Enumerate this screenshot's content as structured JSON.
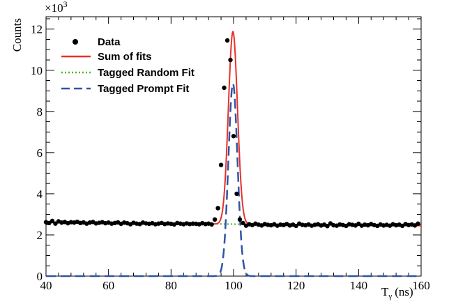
{
  "chart_data": {
    "type": "scatter",
    "xlabel": "T",
    "xlabel_sub": "γ",
    "xlabel_unit": "(ns)",
    "ylabel": "Counts",
    "y_multiplier": "×10",
    "y_multiplier_exp": "3",
    "xlim": [
      40,
      160
    ],
    "ylim": [
      0,
      12.6
    ],
    "x_ticks": [
      40,
      60,
      80,
      100,
      120,
      140,
      160
    ],
    "y_ticks": [
      0,
      2,
      4,
      6,
      8,
      10,
      12
    ],
    "grid": false,
    "legend_position": "top-left",
    "legend": [
      {
        "label": "Data",
        "style": "marker",
        "color": "#000000"
      },
      {
        "label": "Sum of fits",
        "style": "solid",
        "color": "#e8312a"
      },
      {
        "label": "Tagged Random Fit",
        "style": "dotted",
        "color": "#44bb22"
      },
      {
        "label": "Tagged Prompt Fit",
        "style": "dashed",
        "color": "#2e55a5"
      }
    ],
    "data_points": {
      "x_start": 40,
      "x_step": 1,
      "y": [
        2.62,
        2.58,
        2.68,
        2.55,
        2.66,
        2.6,
        2.63,
        2.57,
        2.62,
        2.6,
        2.64,
        2.58,
        2.61,
        2.55,
        2.6,
        2.63,
        2.56,
        2.59,
        2.62,
        2.57,
        2.6,
        2.55,
        2.58,
        2.61,
        2.54,
        2.6,
        2.57,
        2.52,
        2.59,
        2.55,
        2.53,
        2.6,
        2.56,
        2.54,
        2.57,
        2.52,
        2.55,
        2.58,
        2.53,
        2.56,
        2.54,
        2.51,
        2.58,
        2.55,
        2.52,
        2.56,
        2.53,
        2.55,
        2.54,
        2.52,
        2.57,
        2.53,
        2.55,
        2.51,
        2.75,
        3.3,
        5.4,
        9.15,
        11.45,
        10.5,
        6.8,
        4.0,
        2.75,
        2.58,
        2.45,
        2.52,
        2.48,
        2.55,
        2.5,
        2.46,
        2.53,
        2.49,
        2.47,
        2.52,
        2.45,
        2.5,
        2.48,
        2.53,
        2.46,
        2.5,
        2.44,
        2.55,
        2.49,
        2.47,
        2.51,
        2.45,
        2.49,
        2.52,
        2.46,
        2.5,
        2.43,
        2.56,
        2.47,
        2.45,
        2.51,
        2.48,
        2.44,
        2.52,
        2.49,
        2.46,
        2.54,
        2.45,
        2.5,
        2.47,
        2.53,
        2.48,
        2.44,
        2.51,
        2.46,
        2.49,
        2.45,
        2.52,
        2.47,
        2.5,
        2.44,
        2.53,
        2.48,
        2.51,
        2.46,
        2.55
      ]
    },
    "random_fit": {
      "y_at_40": 2.6,
      "y_at_160": 2.45
    },
    "prompt_fit": {
      "amplitude": 9.35,
      "mean": 99.8,
      "sigma": 1.45
    }
  }
}
